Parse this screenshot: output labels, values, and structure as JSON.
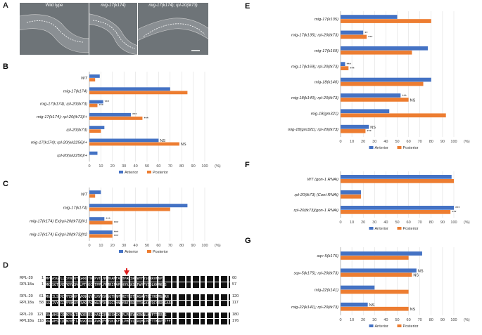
{
  "panels": {
    "A": {
      "letter": "A",
      "images": [
        {
          "caption": "Wild type"
        },
        {
          "caption": "mig-17(k174)"
        },
        {
          "caption": "mig-17(k174); rpl-20(tk73)"
        }
      ]
    },
    "D": {
      "letter": "D",
      "alignment": [
        {
          "name": "RPL-20",
          "start": "1",
          "seq": "MPKASGTLLEVVGKHVGRRPTRLPVTLNMVKAKFAVHPAKSRFWYFVSCRRVKKP",
          "end": "60"
        },
        {
          "name": "RPL18a",
          "start": "1",
          "seq": "MKASGTLREYKVVGRCLPTPKCHTPPLYRMRIFAPNHVVAKSRFWYFVSQLKKMKKS",
          "end": "57"
        },
        {
          "name": "RPL-20",
          "start": "61",
          "seq": "MGEILSIRQVFEKNPIVKNQGVWLRYDSRSGTHNMYREYRDTTAGAVTQCYRDMGARH",
          "end": "120"
        },
        {
          "name": "RPL18a",
          "start": "58",
          "seq": "SGEIVYCGQVFEKSPLRVKNFGIWLRYDSRSGTHNMYREYRDLTTAGAVTQCYRDMGARH",
          "end": "117"
        },
        {
          "name": "RPL-20",
          "start": "121",
          "seq": "RARAHSIQIMKVQVIRADELRSHHAIKQFHDSKIKFPLPHRVPKRKNLHVFTTRRPS",
          "end": "180"
        },
        {
          "name": "RPL18a",
          "start": "118",
          "seq": "RARAHSIQIMKVEEIAASKCRRPAVKQFHDSKIKFPLPHRVLRRQHKPRFTTKRPNTFF",
          "end": "176"
        }
      ]
    }
  },
  "chart_data": [
    {
      "panel": "B",
      "type": "bar",
      "orientation": "horizontal",
      "categories": [
        "WT",
        "mig-17(k174)",
        "mig-17(k174); rpl-20(tk73)",
        "mig-17(k174); rpl-20(tk73)/+",
        "rpl-20(tk73)",
        "mig-17(k174); rpl-20(ok2256)/+",
        "rpl-20(ok2256)/+"
      ],
      "series": [
        {
          "name": "Anterior",
          "color": "#4472c4",
          "values": [
            9,
            70,
            12,
            36,
            13,
            60,
            7
          ]
        },
        {
          "name": "Posterior",
          "color": "#ed7d31",
          "values": [
            5,
            85,
            7,
            46,
            10,
            78,
            0
          ]
        }
      ],
      "annotations": [
        [
          "",
          ""
        ],
        [
          "",
          ""
        ],
        [
          "***",
          "***"
        ],
        [
          "***",
          "***"
        ],
        [
          "",
          ""
        ],
        [
          "NS",
          "NS"
        ],
        [
          "",
          ""
        ]
      ],
      "xlim": [
        0,
        100
      ],
      "xticks": [
        "0",
        "10",
        "20",
        "30",
        "40",
        "50",
        "60",
        "70",
        "80",
        "90",
        "100"
      ],
      "xunit": "(%)",
      "legend": "bottom"
    },
    {
      "panel": "C",
      "type": "bar",
      "orientation": "horizontal",
      "categories": [
        "WT",
        "mig-17(k174)",
        "mig-17(k174) Ex[rpl-20(tk73)]#1",
        "mig-17(k174) Ex[rpl-20(tk73)]#2"
      ],
      "series": [
        {
          "name": "Anterior",
          "color": "#4472c4",
          "values": [
            10,
            85,
            13,
            20
          ]
        },
        {
          "name": "Posterior",
          "color": "#ed7d31",
          "values": [
            5,
            70,
            20,
            20
          ]
        }
      ],
      "annotations": [
        [
          "",
          ""
        ],
        [
          "",
          ""
        ],
        [
          "***",
          "***"
        ],
        [
          "***",
          "***"
        ]
      ],
      "xlim": [
        0,
        100
      ],
      "xticks": [
        "0",
        "10",
        "20",
        "30",
        "40",
        "50",
        "60",
        "70",
        "80",
        "90",
        "100"
      ],
      "xunit": "(%)",
      "legend": "bottom"
    },
    {
      "panel": "E",
      "type": "bar",
      "orientation": "horizontal",
      "categories": [
        "mig-17(k135)",
        "mig-17(k135); rpl-20(tk73)",
        "mig-17(k169)",
        "mig-17(k169); rpl-20(tk73)",
        "mig-18(k140)",
        "mig-18(k140); rpl-20(tk73)",
        "mig-18(gm321)",
        "mig-18(gm321); rpl-20(tk73)"
      ],
      "series": [
        {
          "name": "Anterior",
          "color": "#4472c4",
          "values": [
            50,
            20,
            77,
            4,
            80,
            53,
            43,
            25
          ]
        },
        {
          "name": "Posterior",
          "color": "#ed7d31",
          "values": [
            80,
            23,
            63,
            7,
            73,
            60,
            93,
            22
          ]
        }
      ],
      "annotations": [
        [
          "",
          ""
        ],
        [
          "**",
          "***"
        ],
        [
          "",
          ""
        ],
        [
          "***",
          "***"
        ],
        [
          "",
          ""
        ],
        [
          "***",
          "NS"
        ],
        [
          "",
          ""
        ],
        [
          "NS",
          "***"
        ]
      ],
      "xlim": [
        0,
        100
      ],
      "xticks": [
        "0",
        "10",
        "20",
        "30",
        "40",
        "50",
        "60",
        "70",
        "80",
        "90",
        "100"
      ],
      "xunit": "(%)",
      "legend": "bottom"
    },
    {
      "panel": "F",
      "type": "bar",
      "orientation": "horizontal",
      "categories": [
        "WT (gon-1 RNAi)",
        "rpl-20(tk73) (Cont RNAi)",
        "rpl-20(tk73)(gon-1 RNAi)"
      ],
      "series": [
        {
          "name": "Anterior",
          "color": "#4472c4",
          "values": [
            98,
            18,
            100
          ]
        },
        {
          "name": "Posterior",
          "color": "#ed7d31",
          "values": [
            100,
            18,
            97
          ]
        }
      ],
      "annotations": [
        [
          "",
          ""
        ],
        [
          "",
          ""
        ],
        [
          "***",
          "***"
        ]
      ],
      "xlim": [
        0,
        100
      ],
      "xticks": [
        "0",
        "10",
        "20",
        "30",
        "40",
        "50",
        "60",
        "70",
        "80",
        "90",
        "100"
      ],
      "xunit": "(%)",
      "legend": "bottom"
    },
    {
      "panel": "G",
      "type": "bar",
      "orientation": "horizontal",
      "categories": [
        "sqv-5(k175)",
        "sqv-5(k175); rpl-20(tk73)",
        "mig-22(k141)",
        "mig-22(k141); rpl-20(tk73)"
      ],
      "series": [
        {
          "name": "Anterior",
          "color": "#4472c4",
          "values": [
            72,
            67,
            30,
            24
          ]
        },
        {
          "name": "Posterior",
          "color": "#ed7d31",
          "values": [
            60,
            63,
            60,
            60
          ]
        }
      ],
      "annotations": [
        [
          "",
          ""
        ],
        [
          "NS",
          "NS"
        ],
        [
          "",
          ""
        ],
        [
          "NS",
          "NS"
        ]
      ],
      "xlim": [
        0,
        100
      ],
      "xticks": [
        "0",
        "10",
        "20",
        "30",
        "40",
        "50",
        "60",
        "70",
        "80",
        "90",
        "100"
      ],
      "xunit": "(%)",
      "legend": "bottom"
    }
  ]
}
